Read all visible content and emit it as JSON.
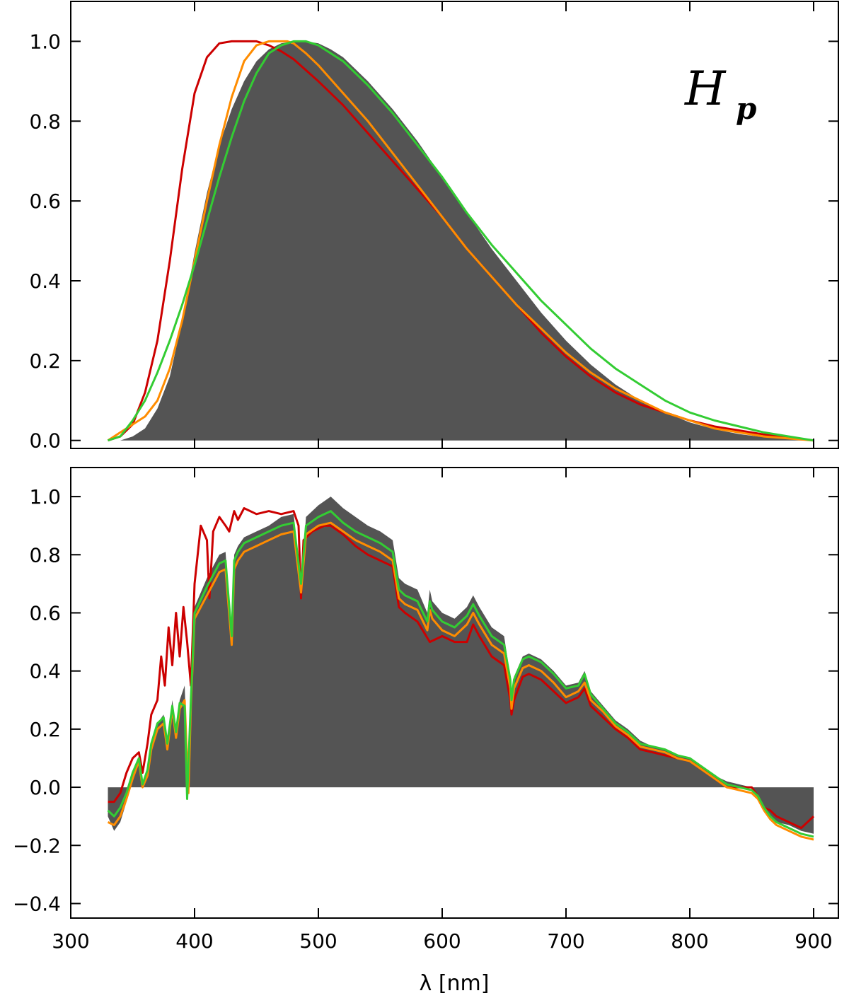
{
  "colors": {
    "fill": "#545454",
    "series": [
      "#cc0000",
      "#ff8c00",
      "#33cc33"
    ],
    "axis": "#000000"
  },
  "chart_data": [
    {
      "type": "area",
      "panel": "top",
      "annotation": "Hp",
      "annotation_main": "H",
      "annotation_sub": "p",
      "xlabel": "",
      "ylabel": "",
      "xlim": [
        300,
        920
      ],
      "ylim": [
        -0.02,
        1.1
      ],
      "yticks": [
        0.0,
        0.2,
        0.4,
        0.6,
        0.8,
        1.0
      ],
      "ytick_labels": [
        "0.0",
        "0.2",
        "0.4",
        "0.6",
        "0.8",
        "1.0"
      ],
      "xticks": [
        300,
        400,
        500,
        600,
        700,
        800,
        900
      ],
      "xtick_labels": [],
      "filled": {
        "name": "response",
        "x": [
          330,
          340,
          350,
          360,
          370,
          380,
          390,
          400,
          410,
          420,
          430,
          440,
          450,
          460,
          470,
          480,
          490,
          500,
          510,
          520,
          530,
          540,
          560,
          580,
          600,
          620,
          640,
          660,
          680,
          700,
          720,
          740,
          760,
          780,
          800,
          820,
          840,
          860,
          880,
          900
        ],
        "y": [
          0.0,
          0.0,
          0.01,
          0.03,
          0.08,
          0.16,
          0.3,
          0.47,
          0.62,
          0.74,
          0.83,
          0.9,
          0.95,
          0.98,
          0.995,
          1.0,
          1.0,
          0.995,
          0.98,
          0.96,
          0.93,
          0.9,
          0.83,
          0.75,
          0.66,
          0.57,
          0.48,
          0.4,
          0.32,
          0.25,
          0.19,
          0.14,
          0.1,
          0.07,
          0.045,
          0.028,
          0.016,
          0.008,
          0.003,
          0.0
        ]
      },
      "series": [
        {
          "name": "red",
          "x": [
            330,
            340,
            350,
            360,
            370,
            380,
            390,
            400,
            410,
            420,
            430,
            440,
            450,
            460,
            470,
            480,
            500,
            520,
            540,
            560,
            580,
            600,
            620,
            640,
            660,
            680,
            700,
            720,
            740,
            760,
            780,
            800,
            820,
            840,
            860,
            880,
            900
          ],
          "y": [
            0.0,
            0.01,
            0.04,
            0.12,
            0.25,
            0.45,
            0.68,
            0.87,
            0.96,
            0.995,
            1.0,
            1.0,
            1.0,
            0.99,
            0.975,
            0.955,
            0.9,
            0.84,
            0.77,
            0.7,
            0.63,
            0.56,
            0.48,
            0.41,
            0.34,
            0.27,
            0.21,
            0.16,
            0.12,
            0.09,
            0.07,
            0.05,
            0.035,
            0.025,
            0.015,
            0.007,
            0.0
          ]
        },
        {
          "name": "orange",
          "x": [
            330,
            340,
            350,
            360,
            370,
            380,
            390,
            400,
            410,
            420,
            430,
            440,
            450,
            460,
            470,
            475,
            480,
            490,
            500,
            520,
            540,
            560,
            580,
            600,
            620,
            640,
            660,
            680,
            700,
            720,
            740,
            760,
            780,
            800,
            820,
            840,
            860,
            880,
            900
          ],
          "y": [
            0.0,
            0.02,
            0.04,
            0.06,
            0.1,
            0.18,
            0.3,
            0.45,
            0.6,
            0.74,
            0.86,
            0.95,
            0.99,
            1.0,
            1.0,
            1.0,
            0.995,
            0.97,
            0.94,
            0.87,
            0.8,
            0.72,
            0.64,
            0.56,
            0.48,
            0.41,
            0.34,
            0.28,
            0.22,
            0.17,
            0.13,
            0.1,
            0.07,
            0.05,
            0.03,
            0.02,
            0.01,
            0.005,
            0.0
          ]
        },
        {
          "name": "green",
          "x": [
            330,
            340,
            350,
            360,
            370,
            380,
            390,
            400,
            410,
            420,
            430,
            440,
            450,
            460,
            470,
            480,
            490,
            500,
            520,
            540,
            560,
            580,
            600,
            620,
            640,
            660,
            680,
            700,
            720,
            740,
            760,
            780,
            800,
            820,
            840,
            860,
            880,
            900
          ],
          "y": [
            0.0,
            0.01,
            0.05,
            0.1,
            0.17,
            0.25,
            0.34,
            0.44,
            0.55,
            0.66,
            0.76,
            0.85,
            0.92,
            0.97,
            0.99,
            1.0,
            1.0,
            0.99,
            0.95,
            0.89,
            0.82,
            0.74,
            0.66,
            0.57,
            0.49,
            0.42,
            0.35,
            0.29,
            0.23,
            0.18,
            0.14,
            0.1,
            0.07,
            0.05,
            0.035,
            0.02,
            0.01,
            0.0
          ]
        }
      ]
    },
    {
      "type": "area",
      "panel": "bottom",
      "xlabel": "λ [nm]",
      "ylabel": "",
      "xlim": [
        300,
        920
      ],
      "ylim": [
        -0.45,
        1.1
      ],
      "yticks": [
        -0.4,
        -0.2,
        0.0,
        0.2,
        0.4,
        0.6,
        0.8,
        1.0
      ],
      "ytick_labels": [
        "−0.4",
        "−0.2",
        "0.0",
        "0.2",
        "0.4",
        "0.6",
        "0.8",
        "1.0"
      ],
      "xticks": [
        300,
        400,
        500,
        600,
        700,
        800,
        900
      ],
      "xtick_labels": [
        "300",
        "400",
        "500",
        "600",
        "700",
        "800",
        "900"
      ],
      "filled": {
        "name": "response",
        "x": [
          330,
          335,
          340,
          345,
          350,
          355,
          358,
          362,
          365,
          370,
          375,
          378,
          382,
          385,
          388,
          392,
          395,
          397,
          400,
          410,
          420,
          425,
          430,
          432,
          435,
          440,
          450,
          460,
          470,
          480,
          486,
          490,
          500,
          510,
          520,
          530,
          540,
          550,
          560,
          565,
          570,
          580,
          588,
          590,
          592,
          600,
          610,
          620,
          625,
          630,
          640,
          650,
          655,
          656,
          658,
          665,
          670,
          680,
          690,
          700,
          710,
          715,
          720,
          730,
          740,
          750,
          760,
          770,
          780,
          790,
          800,
          810,
          820,
          830,
          840,
          850,
          855,
          860,
          865,
          870,
          880,
          890,
          900
        ],
        "y": [
          -0.1,
          -0.15,
          -0.12,
          -0.05,
          0.03,
          0.1,
          0.0,
          0.05,
          0.15,
          0.22,
          0.25,
          0.15,
          0.3,
          0.2,
          0.3,
          0.35,
          0.0,
          0.3,
          0.62,
          0.72,
          0.8,
          0.81,
          0.5,
          0.8,
          0.83,
          0.86,
          0.88,
          0.9,
          0.93,
          0.94,
          0.7,
          0.93,
          0.97,
          1.0,
          0.96,
          0.93,
          0.9,
          0.88,
          0.85,
          0.72,
          0.7,
          0.68,
          0.6,
          0.68,
          0.64,
          0.6,
          0.58,
          0.62,
          0.66,
          0.62,
          0.55,
          0.52,
          0.38,
          0.28,
          0.38,
          0.45,
          0.46,
          0.44,
          0.4,
          0.35,
          0.36,
          0.4,
          0.33,
          0.28,
          0.23,
          0.2,
          0.16,
          0.14,
          0.13,
          0.11,
          0.1,
          0.07,
          0.04,
          0.02,
          0.01,
          0.0,
          -0.03,
          -0.07,
          -0.1,
          -0.12,
          -0.13,
          -0.15,
          -0.16
        ]
      },
      "series": [
        {
          "name": "red",
          "x": [
            330,
            335,
            340,
            345,
            350,
            355,
            358,
            362,
            365,
            370,
            373,
            376,
            379,
            382,
            385,
            388,
            391,
            394,
            397,
            400,
            405,
            410,
            412,
            415,
            420,
            425,
            428,
            432,
            435,
            440,
            450,
            460,
            470,
            480,
            484,
            486,
            488,
            495,
            505,
            510,
            520,
            530,
            540,
            550,
            560,
            565,
            570,
            580,
            590,
            600,
            610,
            620,
            625,
            630,
            640,
            650,
            655,
            656,
            658,
            665,
            670,
            680,
            690,
            700,
            710,
            715,
            720,
            730,
            740,
            750,
            760,
            770,
            780,
            790,
            800,
            810,
            820,
            830,
            840,
            850,
            855,
            860,
            865,
            870,
            880,
            890,
            900
          ],
          "y": [
            -0.05,
            -0.05,
            -0.02,
            0.05,
            0.1,
            0.12,
            0.05,
            0.15,
            0.25,
            0.3,
            0.45,
            0.35,
            0.55,
            0.42,
            0.6,
            0.45,
            0.62,
            0.5,
            0.35,
            0.7,
            0.9,
            0.85,
            0.65,
            0.88,
            0.93,
            0.9,
            0.88,
            0.95,
            0.92,
            0.96,
            0.94,
            0.95,
            0.94,
            0.95,
            0.9,
            0.65,
            0.85,
            0.88,
            0.9,
            0.9,
            0.87,
            0.83,
            0.8,
            0.78,
            0.76,
            0.62,
            0.6,
            0.57,
            0.5,
            0.52,
            0.5,
            0.5,
            0.56,
            0.52,
            0.45,
            0.42,
            0.3,
            0.25,
            0.3,
            0.38,
            0.39,
            0.37,
            0.33,
            0.29,
            0.31,
            0.34,
            0.28,
            0.24,
            0.2,
            0.17,
            0.13,
            0.12,
            0.11,
            0.1,
            0.09,
            0.06,
            0.03,
            0.0,
            0.0,
            0.0,
            -0.03,
            -0.07,
            -0.08,
            -0.1,
            -0.12,
            -0.14,
            -0.1
          ]
        },
        {
          "name": "orange",
          "x": [
            330,
            335,
            340,
            345,
            350,
            355,
            358,
            362,
            365,
            370,
            375,
            378,
            382,
            385,
            388,
            392,
            395,
            397,
            400,
            410,
            420,
            425,
            430,
            432,
            435,
            440,
            450,
            460,
            470,
            480,
            486,
            490,
            500,
            510,
            520,
            530,
            540,
            550,
            560,
            565,
            570,
            580,
            588,
            590,
            592,
            600,
            610,
            620,
            625,
            630,
            640,
            650,
            655,
            656,
            658,
            665,
            670,
            680,
            690,
            700,
            710,
            715,
            720,
            730,
            740,
            750,
            760,
            770,
            780,
            790,
            800,
            810,
            820,
            830,
            840,
            850,
            855,
            860,
            865,
            870,
            880,
            890,
            900
          ],
          "y": [
            -0.12,
            -0.13,
            -0.1,
            -0.04,
            0.03,
            0.09,
            0.0,
            0.04,
            0.13,
            0.2,
            0.22,
            0.13,
            0.27,
            0.17,
            0.27,
            0.3,
            -0.02,
            0.28,
            0.58,
            0.66,
            0.74,
            0.75,
            0.49,
            0.75,
            0.78,
            0.81,
            0.83,
            0.85,
            0.87,
            0.88,
            0.67,
            0.87,
            0.9,
            0.91,
            0.88,
            0.85,
            0.83,
            0.81,
            0.78,
            0.65,
            0.63,
            0.61,
            0.54,
            0.61,
            0.58,
            0.54,
            0.52,
            0.56,
            0.6,
            0.56,
            0.49,
            0.46,
            0.34,
            0.27,
            0.34,
            0.41,
            0.42,
            0.4,
            0.36,
            0.31,
            0.33,
            0.36,
            0.3,
            0.26,
            0.21,
            0.18,
            0.14,
            0.13,
            0.12,
            0.1,
            0.09,
            0.06,
            0.03,
            0.0,
            -0.01,
            -0.02,
            -0.04,
            -0.08,
            -0.11,
            -0.13,
            -0.15,
            -0.17,
            -0.18
          ]
        },
        {
          "name": "green",
          "x": [
            330,
            335,
            340,
            345,
            350,
            355,
            358,
            362,
            365,
            370,
            375,
            378,
            382,
            385,
            388,
            392,
            394,
            397,
            400,
            410,
            420,
            425,
            430,
            432,
            435,
            440,
            450,
            460,
            470,
            480,
            486,
            490,
            500,
            510,
            520,
            530,
            540,
            550,
            560,
            565,
            570,
            580,
            588,
            590,
            592,
            600,
            610,
            620,
            625,
            630,
            640,
            650,
            655,
            656,
            658,
            665,
            670,
            680,
            690,
            700,
            710,
            715,
            720,
            730,
            740,
            750,
            760,
            770,
            780,
            790,
            800,
            810,
            820,
            830,
            840,
            850,
            855,
            860,
            865,
            870,
            880,
            890,
            900
          ],
          "y": [
            -0.08,
            -0.1,
            -0.07,
            -0.02,
            0.05,
            0.1,
            0.01,
            0.06,
            0.15,
            0.22,
            0.24,
            0.15,
            0.28,
            0.19,
            0.29,
            0.28,
            -0.04,
            0.3,
            0.6,
            0.69,
            0.77,
            0.78,
            0.52,
            0.78,
            0.81,
            0.84,
            0.86,
            0.88,
            0.9,
            0.91,
            0.7,
            0.9,
            0.93,
            0.95,
            0.91,
            0.88,
            0.86,
            0.84,
            0.81,
            0.68,
            0.66,
            0.64,
            0.57,
            0.64,
            0.61,
            0.57,
            0.55,
            0.59,
            0.63,
            0.59,
            0.52,
            0.49,
            0.37,
            0.3,
            0.37,
            0.44,
            0.45,
            0.43,
            0.39,
            0.34,
            0.35,
            0.39,
            0.32,
            0.27,
            0.22,
            0.19,
            0.15,
            0.14,
            0.13,
            0.11,
            0.1,
            0.07,
            0.04,
            0.01,
            0.0,
            -0.01,
            -0.03,
            -0.07,
            -0.1,
            -0.12,
            -0.14,
            -0.16,
            -0.17
          ]
        }
      ]
    }
  ]
}
